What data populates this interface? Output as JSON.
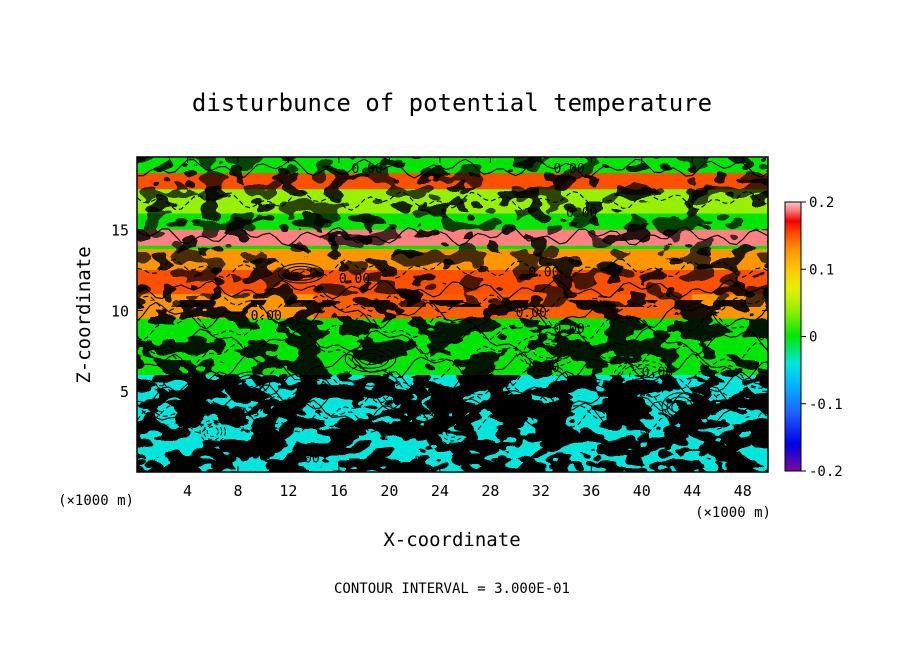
{
  "chart_data": {
    "type": "heatmap",
    "title": "disturbunce of potential temperature",
    "xlabel": "X-coordinate",
    "ylabel": "Z-coordinate",
    "x_unit": "(×1000 m)",
    "y_unit": "(×1000 m)",
    "x_ticks": [
      4,
      8,
      12,
      16,
      20,
      24,
      28,
      32,
      36,
      40,
      44,
      48
    ],
    "y_ticks": [
      5,
      10,
      15
    ],
    "xlim": [
      0,
      50
    ],
    "ylim": [
      0,
      19.5
    ],
    "colorbar": {
      "ticks": [
        "0.2",
        "0.1",
        "0",
        "-0.1",
        "-0.2"
      ],
      "range": [
        -0.2,
        0.2
      ],
      "colors": [
        "#7a0aa0",
        "#3c10c0",
        "#0000e6",
        "#1e64ff",
        "#00b4ff",
        "#00e6dc",
        "#00e696",
        "#00e600",
        "#96f000",
        "#e6f000",
        "#ffc800",
        "#ff9600",
        "#ff5000",
        "#f00000",
        "#ff8080",
        "#ffc8c8"
      ]
    },
    "contour_labels": [
      "0.00",
      "0.00",
      "0.00",
      "0.00",
      "0.00",
      "0.00",
      "0.00",
      "0.00",
      "0.00",
      "0.00",
      "0.00"
    ],
    "contour_interval_text": "CONTOUR INTERVAL = 3.000E-01",
    "bands": [
      {
        "z": [
          17.5,
          18.5
        ],
        "value": 0.12
      },
      {
        "z": [
          16.0,
          17.5
        ],
        "value": 0.02
      },
      {
        "z": [
          14.0,
          15.0
        ],
        "value": 0.16
      },
      {
        "z": [
          12.5,
          13.8
        ],
        "value": 0.09
      },
      {
        "z": [
          11.0,
          12.5
        ],
        "value": 0.12
      },
      {
        "z": [
          9.5,
          11.0
        ],
        "value": 0.08
      }
    ]
  }
}
